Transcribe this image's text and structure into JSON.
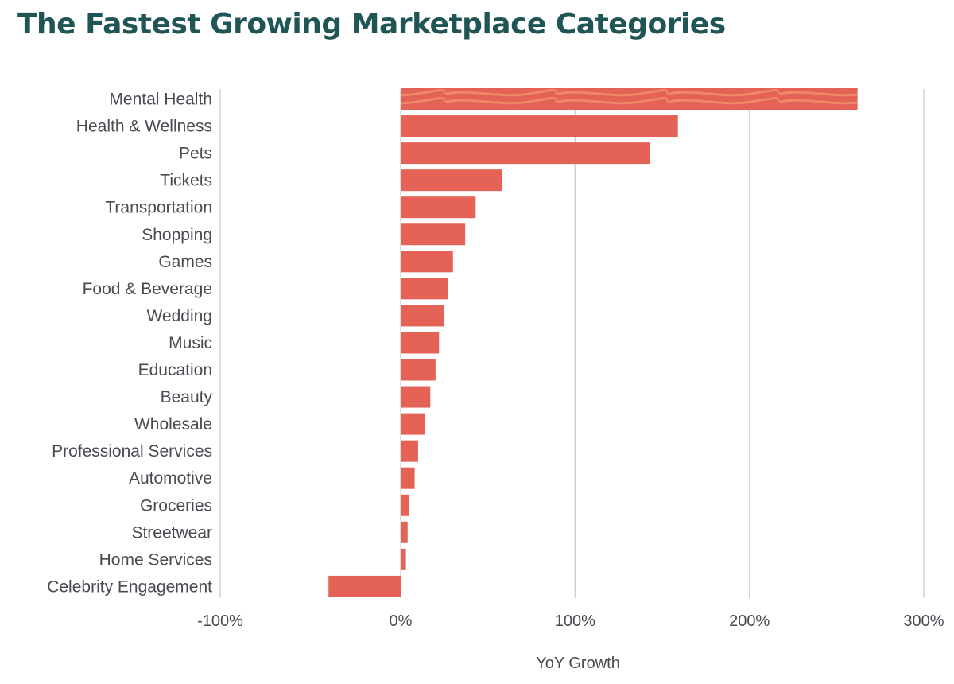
{
  "title": "The Fastest Growing Marketplace Categories",
  "colors": {
    "bar": "#e46356",
    "bar_highlight_stripe": "#ee8c6b",
    "grid": "#c6d8d6",
    "title": "#1f5554",
    "text": "#4a4a52"
  },
  "chart_data": {
    "type": "bar",
    "orientation": "horizontal",
    "title": "The Fastest Growing Marketplace Categories",
    "xlabel": "YoY Growth",
    "ylabel": "",
    "xlim": [
      -100,
      300
    ],
    "x_ticks": [
      -100,
      0,
      100,
      200,
      300
    ],
    "x_tick_labels": [
      "-100%",
      "0%",
      "100%",
      "200%",
      "300%"
    ],
    "grid": true,
    "categories": [
      "Mental Health",
      "Health & Wellness",
      "Pets",
      "Tickets",
      "Transportation",
      "Shopping",
      "Games",
      "Food & Beverage",
      "Wedding",
      "Music",
      "Education",
      "Beauty",
      "Wholesale",
      "Professional Services",
      "Automotive",
      "Groceries",
      "Streetwear",
      "Home Services",
      "Celebrity Engagement"
    ],
    "values": [
      262,
      159,
      143,
      58,
      43,
      37,
      30,
      27,
      25,
      22,
      20,
      17,
      14,
      10,
      8,
      5,
      4,
      3,
      -40
    ]
  }
}
